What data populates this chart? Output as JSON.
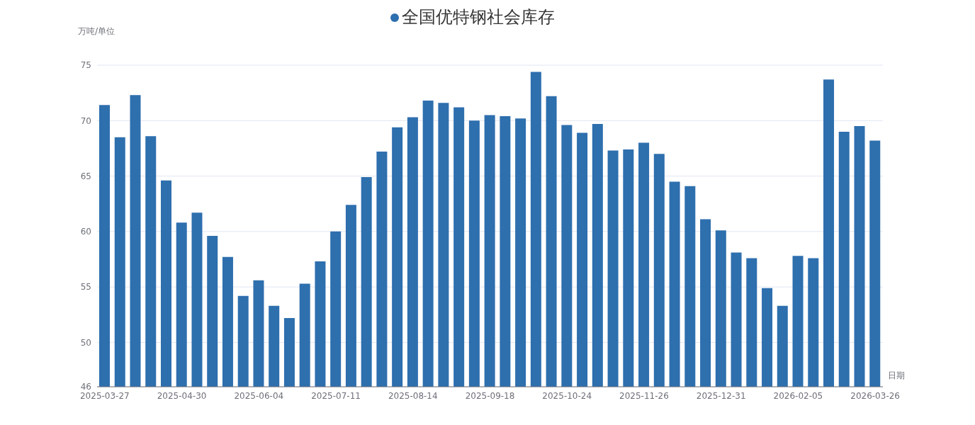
{
  "chart_data": {
    "type": "bar",
    "ylabel": "万吨/单位",
    "xlabel": "日期",
    "categories": [
      "2025-03-27",
      null,
      null,
      null,
      null,
      "2025-04-30",
      null,
      null,
      null,
      null,
      "2025-06-04",
      null,
      null,
      null,
      null,
      "2025-07-11",
      null,
      null,
      null,
      null,
      "2025-08-14",
      null,
      null,
      null,
      null,
      "2025-09-18",
      null,
      null,
      null,
      null,
      "2025-10-24",
      null,
      null,
      null,
      null,
      "2025-11-26",
      null,
      null,
      null,
      null,
      "2025-12-31",
      null,
      null,
      null,
      null,
      "2026-02-05",
      null,
      null,
      null,
      null,
      "2026-03-26"
    ],
    "series": [
      {
        "name": "全国优特钢社会库存",
        "color": "#2e6fae",
        "values": [
          71.4,
          68.5,
          72.3,
          68.6,
          64.6,
          60.8,
          61.7,
          59.6,
          57.7,
          54.2,
          55.6,
          53.3,
          52.2,
          55.3,
          57.3,
          60.0,
          62.4,
          64.9,
          67.2,
          69.4,
          70.3,
          71.8,
          71.6,
          71.2,
          70.0,
          70.5,
          70.4,
          70.2,
          74.4,
          72.2,
          69.6,
          68.9,
          69.7,
          67.3,
          67.4,
          68.0,
          67.0,
          64.5,
          64.1,
          61.1,
          60.1,
          58.1,
          57.6,
          54.9,
          53.3,
          57.8,
          57.6,
          73.7,
          69.0,
          69.5,
          68.2
        ]
      }
    ],
    "ylim": [
      46,
      75
    ],
    "yticks": [
      46,
      50,
      55,
      60,
      65,
      70,
      75
    ],
    "grid": "y",
    "legend": "top"
  }
}
